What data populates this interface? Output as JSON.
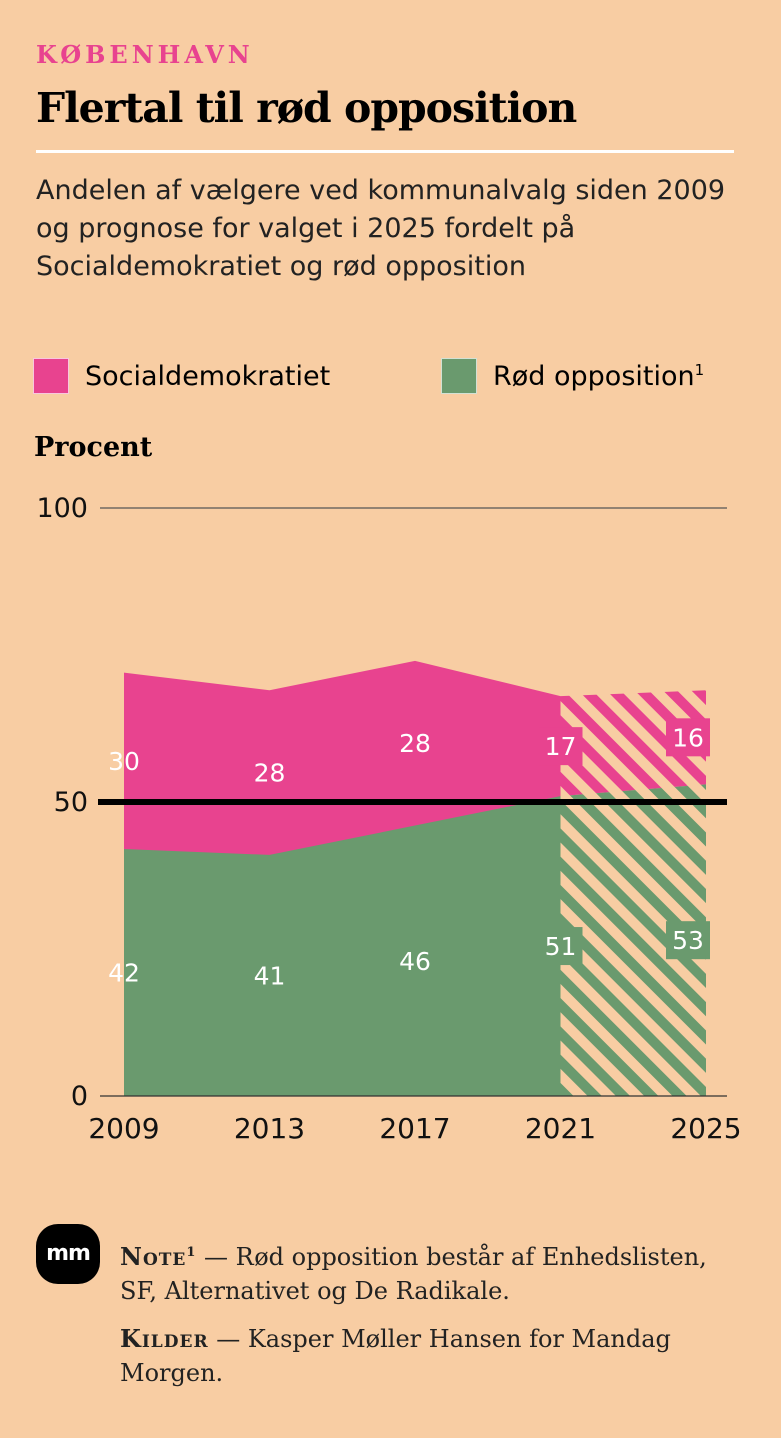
{
  "header": {
    "kicker": "KØBENHAVN",
    "title": "Flertal til rød opposition",
    "subtitle": "Andelen af vælgere ved kommunalvalg siden 2009 og prognose for valget i 2025 fordelt på Socialdemokratiet og rød opposition"
  },
  "legend": {
    "items": [
      {
        "label": "Socialdemokratiet",
        "color": "#e8438f"
      },
      {
        "label": "Rød opposition",
        "sup": "1",
        "color": "#6a9a6e"
      }
    ]
  },
  "colors": {
    "background": "#f8cda3",
    "pink": "#e8438f",
    "green": "#6a9a6e",
    "majority_line": "#000000"
  },
  "chart_data": {
    "type": "area",
    "ylabel": "Procent",
    "ylim": [
      0,
      100
    ],
    "yticks": [
      0,
      50,
      100
    ],
    "categories": [
      "2009",
      "2013",
      "2017",
      "2021",
      "2025"
    ],
    "series": [
      {
        "name": "Rød opposition",
        "values": [
          42,
          41,
          46,
          51,
          53
        ],
        "labels": [
          "42",
          "41",
          "46",
          "51",
          "53"
        ]
      },
      {
        "name": "Socialdemokratiet",
        "values": [
          30,
          28,
          28,
          17,
          16
        ],
        "labels": [
          "30",
          "28",
          "28",
          "17",
          "16"
        ]
      }
    ],
    "reference_line": 50,
    "forecast_from": "2021",
    "forecast_style": "hatched"
  },
  "footer": {
    "logo": "mm",
    "note_label": "Note",
    "note_sup": "1",
    "note_text": "Rød opposition består af Enhedslisten, SF, Alternativet og De Radikale.",
    "sources_label": "Kilder",
    "sources_text": "Kasper Møller Hansen for Mandag Morgen."
  }
}
